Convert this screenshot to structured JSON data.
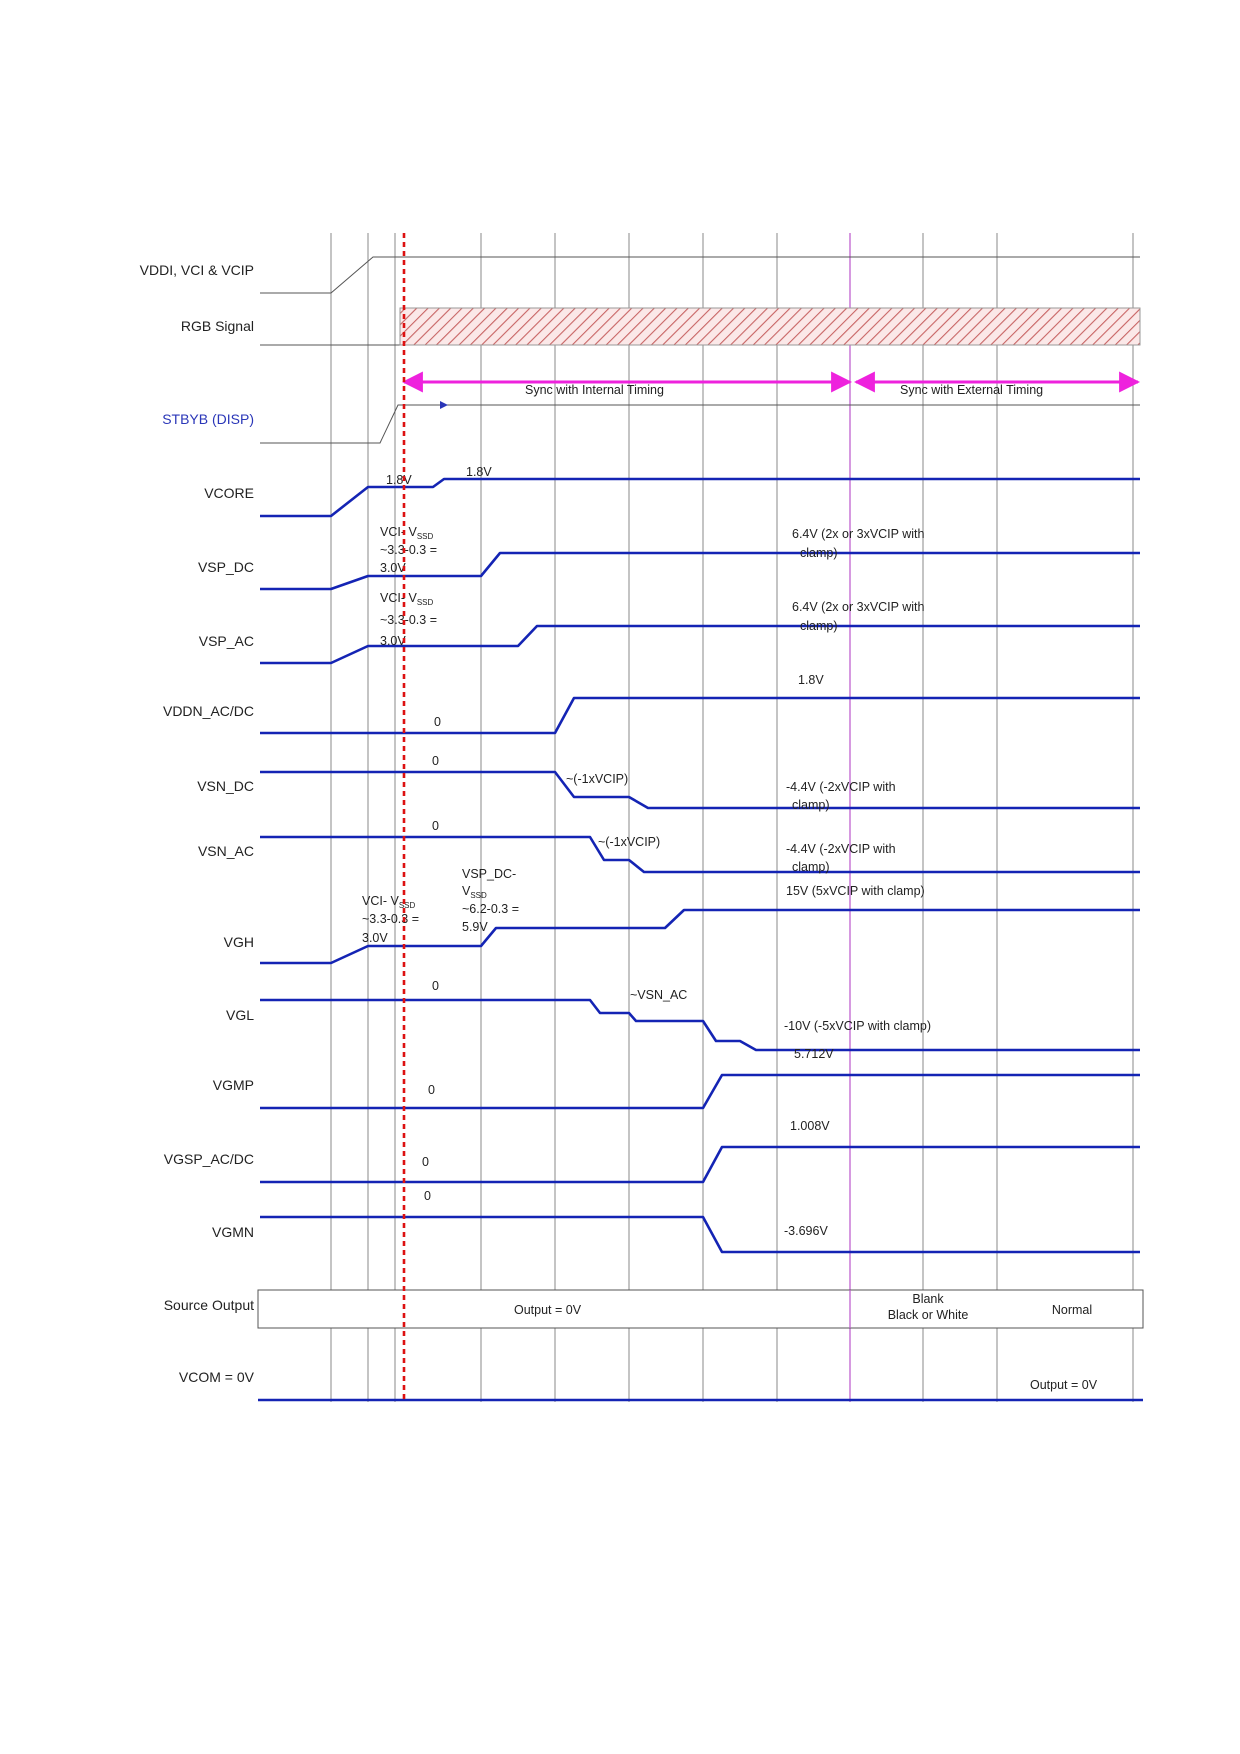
{
  "signal_labels": {
    "vddi": "VDDI, VCI & VCIP",
    "rgb": "RGB Signal",
    "stbyb": "STBYB (DISP)",
    "vcore": "VCORE",
    "vsp_dc": "VSP_DC",
    "vsp_ac": "VSP_AC",
    "vddn": "VDDN_AC/DC",
    "vsn_dc": "VSN_DC",
    "vsn_ac": "VSN_AC",
    "vgh": "VGH",
    "vgl": "VGL",
    "vgmp": "VGMP",
    "vgsp": "VGSP_AC/DC",
    "vgmn": "VGMN",
    "source": "Source Output",
    "vcom": "VCOM = 0V"
  },
  "timing": {
    "internal": "Sync with Internal Timing",
    "external": "Sync with External Timing"
  },
  "annotations": {
    "vcore_1": "1.8V",
    "vcore_2": "1.8V",
    "vsp_dc_start_1": "VCI- V",
    "vsp_dc_start_sub": "SSD",
    "vsp_dc_start_2": "~3.3-0.3 =",
    "vsp_dc_start_3": "3.0V",
    "vsp_dc_end_1": "6.4V (2x or 3xVCIP with",
    "vsp_dc_end_2": "clamp)",
    "vsp_ac_start_1": "VCI- V",
    "vsp_ac_start_sub": "SSD",
    "vsp_ac_start_2": "~3.3-0.3 =",
    "vsp_ac_start_3": "3.0V",
    "vsp_ac_end_1": "6.4V (2x or 3xVCIP with",
    "vsp_ac_end_2": "clamp)",
    "vddn_zero": "0",
    "vddn_end": "1.8V",
    "vsn_dc_zero": "0",
    "vsn_dc_mid": "~(-1xVCIP)",
    "vsn_dc_end_1": "-4.4V (-2xVCIP with",
    "vsn_dc_end_2": "clamp)",
    "vsn_ac_zero": "0",
    "vsn_ac_mid": "~(-1xVCIP)",
    "vsn_ac_end_1": "-4.4V (-2xVCIP with",
    "vsn_ac_end_2": "clamp)",
    "vgh_start_1": "VCI- V",
    "vgh_start_sub": "SSD",
    "vgh_start_2": "~3.3-0.3 =",
    "vgh_start_3": "3.0V",
    "vgh_mid_1": "VSP_DC-",
    "vgh_mid_2": "V",
    "vgh_mid_sub": "SSD",
    "vgh_mid_3": "~6.2-0.3 =",
    "vgh_mid_4": "5.9V",
    "vgh_end": "15V (5xVCIP with clamp)",
    "vgl_zero": "0",
    "vgl_mid": "~VSN_AC",
    "vgl_end": "-10V (-5xVCIP with clamp)",
    "vgmp_zero": "0",
    "vgmp_end": "5.712V",
    "vgsp_zero": "0",
    "vgsp_end": "1.008V",
    "vgmn_zero": "0",
    "vgmn_end": "-3.696V"
  },
  "source_output": {
    "output": "Output = 0V",
    "blank_1": "Blank",
    "blank_2": "Black or White",
    "normal": "Normal"
  },
  "vcom_output": "Output = 0V",
  "colors": {
    "signal": "#1424b4",
    "marker": "#dd1111",
    "timing_arrow": "#ee22dd",
    "stbyb_label": "#2a36b8",
    "sync_line": "#bb55cc"
  }
}
